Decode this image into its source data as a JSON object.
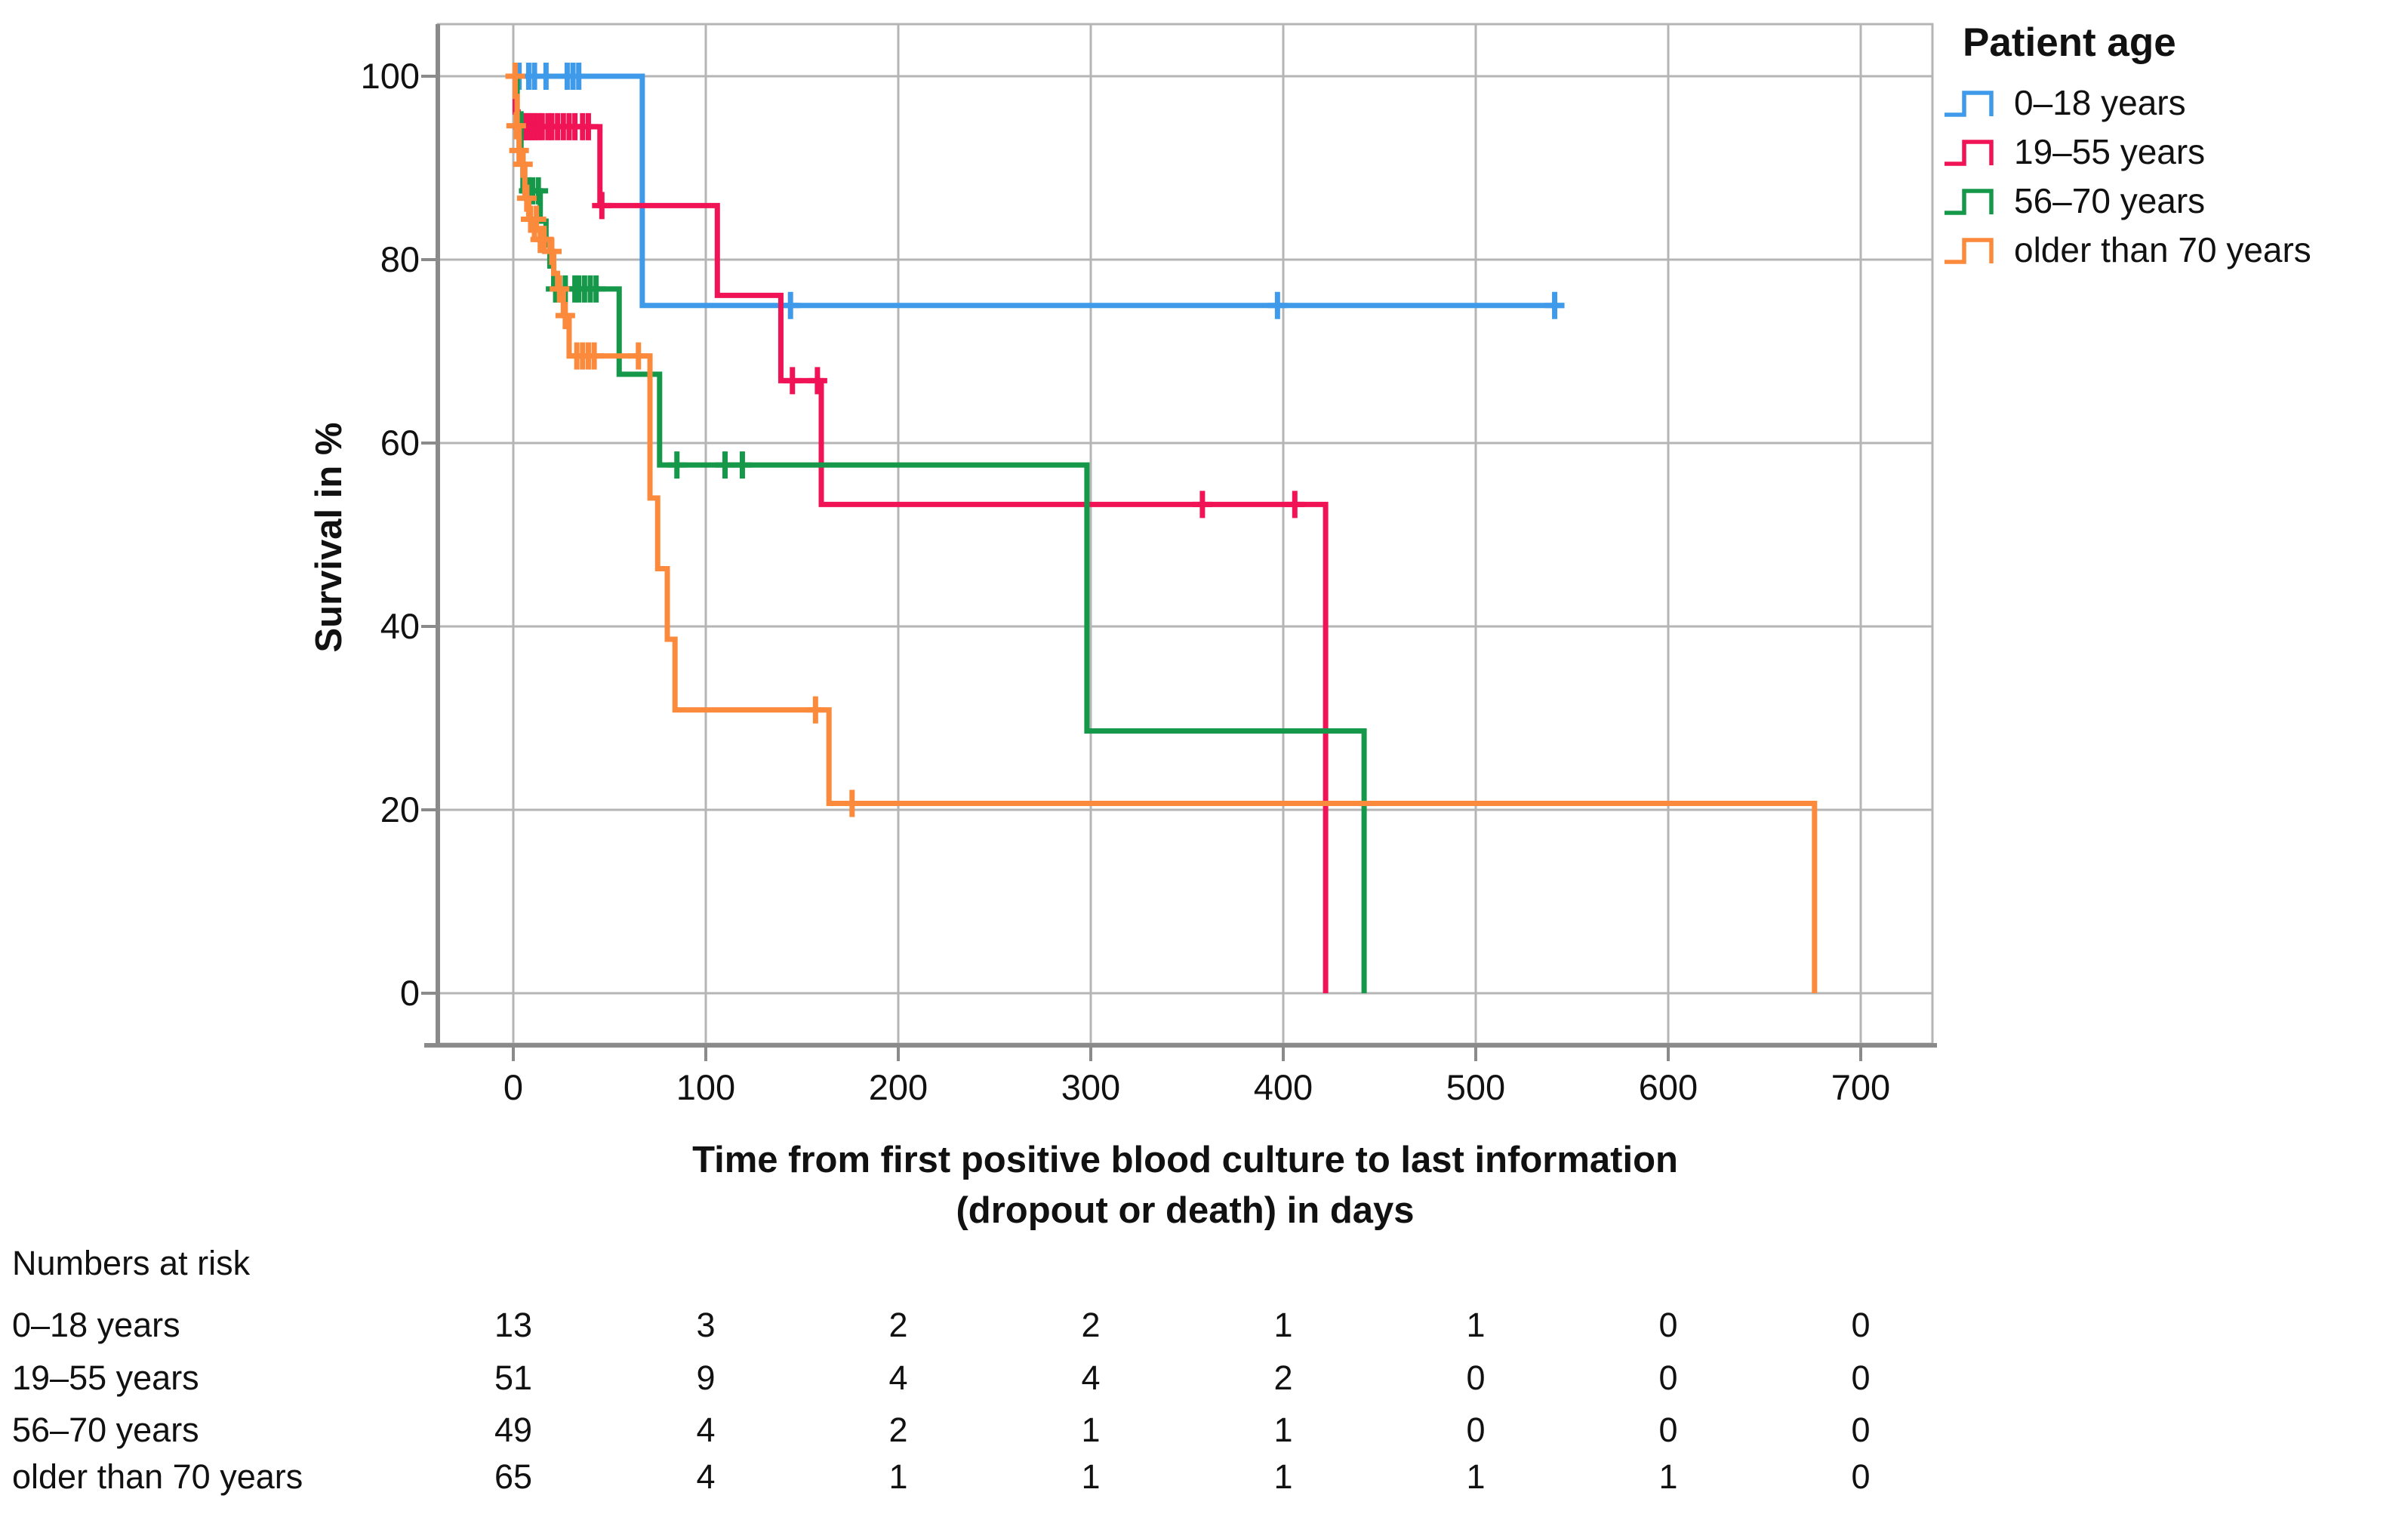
{
  "chart_data": {
    "type": "line",
    "subtype": "kaplan-meier-step-function",
    "title": "",
    "ylabel": "Survival in %",
    "xlabel_lines": [
      "Time from first positive blood culture to last information",
      "(dropout or death) in days"
    ],
    "legend_title": "Patient age",
    "legend_position": "right",
    "grid": true,
    "xlim": [
      0,
      700
    ],
    "ylim": [
      0,
      100
    ],
    "x_ticks": [
      0,
      100,
      200,
      300,
      400,
      500,
      600,
      700
    ],
    "y_ticks": [
      100,
      80,
      60,
      40,
      20,
      0
    ],
    "colors": {
      "grid": "#b5b5b5",
      "axis": "#8a8a8a",
      "text": "#111111"
    },
    "series": [
      {
        "name": "0–18 years",
        "color": "#3f9be9",
        "steps": [
          [
            0,
            100
          ],
          [
            67,
            100
          ],
          [
            67,
            75
          ],
          [
            546,
            75
          ]
        ],
        "censors": [
          [
            3,
            100
          ],
          [
            8,
            100
          ],
          [
            11,
            100
          ],
          [
            17,
            100
          ],
          [
            28,
            100
          ],
          [
            31,
            100
          ],
          [
            34,
            100
          ],
          [
            144,
            75
          ],
          [
            397,
            75
          ],
          [
            541,
            75
          ]
        ]
      },
      {
        "name": "19–55 years",
        "color": "#f01355",
        "steps": [
          [
            0,
            100
          ],
          [
            1,
            100
          ],
          [
            1,
            96.1
          ],
          [
            2.5,
            96.1
          ],
          [
            2.5,
            94.5
          ],
          [
            45,
            94.5
          ],
          [
            45,
            85.9
          ],
          [
            106,
            85.9
          ],
          [
            106,
            76.1
          ],
          [
            139,
            76.1
          ],
          [
            139,
            66.8
          ],
          [
            160,
            66.8
          ],
          [
            160,
            53.3
          ],
          [
            422,
            53.3
          ],
          [
            422,
            0
          ]
        ],
        "censors": [
          [
            5,
            94.5
          ],
          [
            6.5,
            94.5
          ],
          [
            8,
            94.5
          ],
          [
            9.5,
            94.5
          ],
          [
            11,
            94.5
          ],
          [
            13,
            94.5
          ],
          [
            15,
            94.5
          ],
          [
            18,
            94.5
          ],
          [
            20,
            94.5
          ],
          [
            23,
            94.5
          ],
          [
            26,
            94.5
          ],
          [
            29,
            94.5
          ],
          [
            32,
            94.5
          ],
          [
            36,
            94.5
          ],
          [
            39,
            94.5
          ],
          [
            46,
            85.9
          ],
          [
            145,
            66.8
          ],
          [
            158,
            66.8
          ],
          [
            358,
            53.3
          ],
          [
            406,
            53.3
          ]
        ]
      },
      {
        "name": "56–70 years",
        "color": "#16984a",
        "steps": [
          [
            0,
            100
          ],
          [
            2,
            100
          ],
          [
            2,
            95.9
          ],
          [
            4,
            95.9
          ],
          [
            4,
            91.8
          ],
          [
            5,
            91.8
          ],
          [
            5,
            87.5
          ],
          [
            14,
            87.5
          ],
          [
            14,
            84.2
          ],
          [
            17,
            84.2
          ],
          [
            17,
            81.6
          ],
          [
            19,
            81.6
          ],
          [
            19,
            79.3
          ],
          [
            21,
            79.3
          ],
          [
            21,
            76.8
          ],
          [
            55,
            76.8
          ],
          [
            55,
            67.5
          ],
          [
            76,
            67.5
          ],
          [
            76,
            57.6
          ],
          [
            298,
            57.6
          ],
          [
            298,
            28.6
          ],
          [
            442,
            28.6
          ],
          [
            442,
            0
          ]
        ],
        "censors": [
          [
            8,
            87.5
          ],
          [
            10,
            87.5
          ],
          [
            13,
            87.5
          ],
          [
            22,
            76.8
          ],
          [
            24,
            76.8
          ],
          [
            27,
            76.8
          ],
          [
            32,
            76.8
          ],
          [
            34,
            76.8
          ],
          [
            37,
            76.8
          ],
          [
            40,
            76.8
          ],
          [
            43,
            76.8
          ],
          [
            85,
            57.6
          ],
          [
            110,
            57.6
          ],
          [
            119,
            57.6
          ]
        ]
      },
      {
        "name": "older than 70 years",
        "color": "#fb8a3c",
        "steps": [
          [
            0,
            100
          ],
          [
            1,
            100
          ],
          [
            1,
            97.8
          ],
          [
            2,
            97.8
          ],
          [
            2,
            94.6
          ],
          [
            3,
            94.6
          ],
          [
            3,
            91.9
          ],
          [
            5,
            91.9
          ],
          [
            5,
            90.4
          ],
          [
            6,
            90.4
          ],
          [
            6,
            86.7
          ],
          [
            8,
            86.7
          ],
          [
            8,
            84.4
          ],
          [
            11,
            84.4
          ],
          [
            11,
            82.2
          ],
          [
            19,
            82.2
          ],
          [
            19,
            80.9
          ],
          [
            21,
            80.9
          ],
          [
            21,
            78.5
          ],
          [
            23,
            78.5
          ],
          [
            23,
            76.8
          ],
          [
            26,
            76.8
          ],
          [
            26,
            73.9
          ],
          [
            29,
            73.9
          ],
          [
            29,
            69.5
          ],
          [
            71,
            69.5
          ],
          [
            71,
            54
          ],
          [
            75,
            54
          ],
          [
            75,
            46.3
          ],
          [
            80,
            46.3
          ],
          [
            80,
            38.6
          ],
          [
            84,
            38.6
          ],
          [
            84,
            30.9
          ],
          [
            164,
            30.9
          ],
          [
            164,
            20.7
          ],
          [
            676,
            20.7
          ],
          [
            676,
            0
          ]
        ],
        "censors": [
          [
            1,
            100
          ],
          [
            1.5,
            94.6
          ],
          [
            3,
            91.9
          ],
          [
            5,
            90.4
          ],
          [
            7,
            86.7
          ],
          [
            9,
            84.4
          ],
          [
            12,
            84.4
          ],
          [
            14,
            82.2
          ],
          [
            16,
            82.2
          ],
          [
            20,
            80.9
          ],
          [
            24,
            76.8
          ],
          [
            27,
            73.9
          ],
          [
            33,
            69.5
          ],
          [
            36,
            69.5
          ],
          [
            39,
            69.5
          ],
          [
            42,
            69.5
          ],
          [
            65,
            69.5
          ],
          [
            157,
            30.9
          ],
          [
            176,
            20.7
          ]
        ]
      }
    ],
    "numbers_at_risk": {
      "title": "Numbers at risk",
      "columns": [
        0,
        100,
        200,
        300,
        400,
        500,
        600,
        700
      ],
      "rows": [
        {
          "label": "0–18 years",
          "values": [
            13,
            3,
            2,
            2,
            1,
            1,
            0,
            0
          ]
        },
        {
          "label": "19–55 years",
          "values": [
            51,
            9,
            4,
            4,
            2,
            0,
            0,
            0
          ]
        },
        {
          "label": "56–70 years",
          "values": [
            49,
            4,
            2,
            1,
            1,
            0,
            0,
            0
          ]
        },
        {
          "label": "older than 70 years",
          "values": [
            65,
            4,
            1,
            1,
            1,
            1,
            1,
            0
          ]
        }
      ]
    }
  }
}
